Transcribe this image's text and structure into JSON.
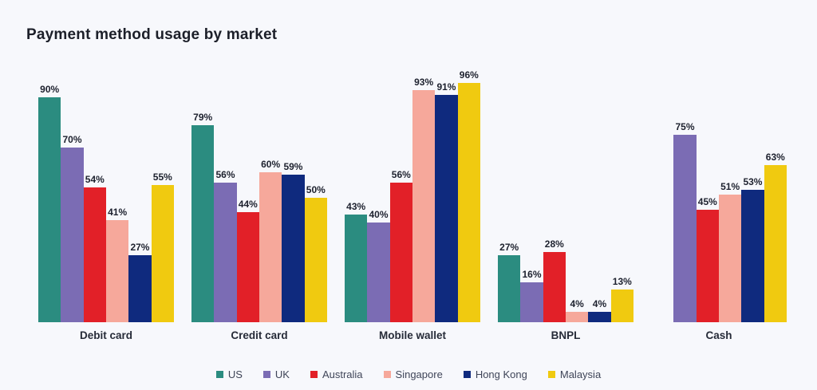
{
  "title": "Payment method usage by market",
  "colors": {
    "background": "#f7f8fc",
    "title_text": "#1c1f29",
    "value_label_text": "#1d212e",
    "category_label_text": "#262b38",
    "legend_text": "#3f4558"
  },
  "chart_data": {
    "type": "bar",
    "title": "Payment method usage by market",
    "categories": [
      "Debit card",
      "Credit card",
      "Mobile wallet",
      "BNPL",
      "Cash"
    ],
    "series": [
      {
        "name": "US",
        "color": "#2b8c80",
        "values": [
          90,
          79,
          43,
          27,
          null
        ]
      },
      {
        "name": "UK",
        "color": "#7b6cb4",
        "values": [
          70,
          56,
          40,
          16,
          75
        ]
      },
      {
        "name": "Australia",
        "color": "#e22028",
        "values": [
          54,
          44,
          56,
          28,
          45
        ]
      },
      {
        "name": "Singapore",
        "color": "#f6a89b",
        "values": [
          41,
          60,
          93,
          4,
          51
        ]
      },
      {
        "name": "Hong Kong",
        "color": "#0f2a7e",
        "values": [
          27,
          59,
          91,
          4,
          53
        ]
      },
      {
        "name": "Malaysia",
        "color": "#f0ca10",
        "values": [
          55,
          50,
          96,
          13,
          63
        ]
      }
    ],
    "value_suffix": "%",
    "xlabel": "",
    "ylabel": "",
    "ylim": [
      0,
      100
    ],
    "grid": false,
    "data_labels": true,
    "legend_position": "bottom"
  }
}
